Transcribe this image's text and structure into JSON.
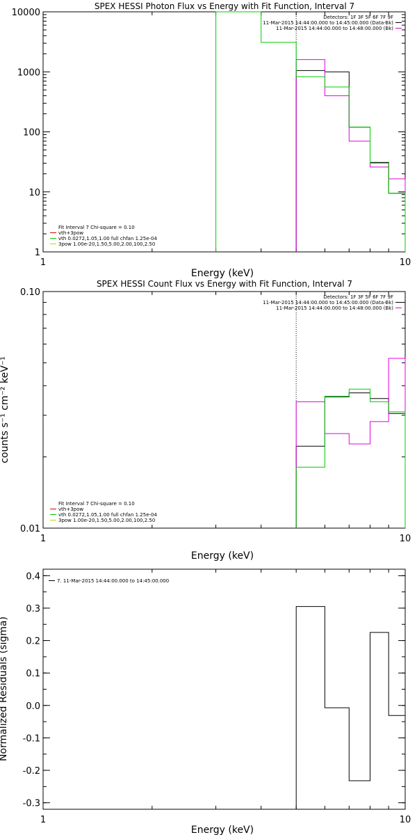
{
  "chart_data": [
    {
      "type": "line",
      "subtype": "step",
      "title": "SPEX HESSI Photon Flux vs Energy with Fit Function, Interval 7",
      "xlabel": "Energy (keV)",
      "ylabel": "",
      "xscale": "log",
      "yscale": "log",
      "xlim": [
        1,
        10
      ],
      "ylim": [
        1,
        10000
      ],
      "x_ticks": [
        "1",
        "10"
      ],
      "y_ticks": [
        "1",
        "10",
        "100",
        "1000",
        "10000"
      ],
      "marker_line_x": 5,
      "legend_top_right": {
        "lines": [
          "Detectors: 1F 3F 5F 6F 7F 9F",
          "11-Mar-2015 14:44:00.000 to 14:45:00.000 (Data-Bk)",
          "11-Mar-2015 14:44:00.000 to 14:48:00.000 (Bk)"
        ],
        "colors": [
          "#000000",
          "#000000",
          "#e000e0"
        ]
      },
      "legend_bottom_left": {
        "lines": [
          "Fit Interval 7   Chi-square = 0.10",
          "vth+3pow",
          "vth 0.0272,1.05,1.00  full chfan 1.25e-04",
          "3pow 1.00e-20,1.50,5.00,2.00,100,2.50"
        ],
        "colors": [
          "#000000",
          "#e00000",
          "#00cc00",
          "#cccc00"
        ]
      },
      "series": [
        {
          "color": "#000000",
          "edges": [
            5,
            6,
            7,
            8,
            9,
            10
          ],
          "values": [
            1050,
            1000,
            120,
            31,
            9.5
          ]
        },
        {
          "color": "#e000e0",
          "edges": [
            5,
            6,
            7,
            8,
            9,
            10
          ],
          "values": [
            1600,
            400,
            70,
            26,
            16.5
          ]
        },
        {
          "color": "#00cc00",
          "edges": [
            3,
            4,
            5,
            6,
            7,
            8,
            9,
            10
          ],
          "values": [
            10000,
            3100,
            830,
            560,
            120,
            30,
            9.5
          ]
        }
      ]
    },
    {
      "type": "line",
      "subtype": "step",
      "title": "SPEX HESSI Count Flux vs Energy with Fit Function, Interval 7",
      "xlabel": "Energy (keV)",
      "ylabel": "counts s⁻¹ cm⁻² keV⁻¹",
      "xscale": "log",
      "yscale": "log",
      "xlim": [
        1,
        10
      ],
      "ylim": [
        0.01,
        0.1
      ],
      "x_ticks": [
        "1",
        "10"
      ],
      "y_ticks": [
        "0.01",
        "0.10"
      ],
      "marker_line_x": 5,
      "legend_top_right": {
        "lines": [
          "Detectors: 1F 3F 5F 6F 7F 9F",
          "11-Mar-2015 14:44:00.000 to 14:45:00.000 (Data-Bk)",
          "11-Mar-2015 14:44:00.000 to 14:48:00.000 (Bk)"
        ],
        "colors": [
          "#000000",
          "#000000",
          "#e000e0"
        ]
      },
      "legend_bottom_left": {
        "lines": [
          "Fit Interval 7   Chi-square = 0.10",
          "vth+3pow",
          "vth 0.0272,1.05,1.00  full chfan 1.25e-04",
          "3pow 1.00e-20,1.50,5.00,2.00,100,2.50"
        ],
        "colors": [
          "#000000",
          "#e00000",
          "#00cc00",
          "#cccc00"
        ]
      },
      "series": [
        {
          "color": "#000000",
          "edges": [
            5,
            6,
            7,
            8,
            9,
            10
          ],
          "values": [
            0.0222,
            0.0359,
            0.0373,
            0.0353,
            0.0305
          ]
        },
        {
          "color": "#e000e0",
          "edges": [
            5,
            6,
            7,
            8,
            9,
            10
          ],
          "values": [
            0.0342,
            0.0251,
            0.0227,
            0.0282,
            0.0522
          ]
        },
        {
          "color": "#00cc00",
          "edges": [
            5,
            6,
            7,
            8,
            9,
            10
          ],
          "values": [
            0.0181,
            0.0361,
            0.0387,
            0.0342,
            0.031
          ]
        }
      ]
    },
    {
      "type": "line",
      "subtype": "step",
      "title": "",
      "xlabel": "Energy (keV)",
      "ylabel": "Normalized Residuals (sigma)",
      "xscale": "log",
      "yscale": "linear",
      "xlim": [
        1,
        10
      ],
      "ylim": [
        -0.32,
        0.42
      ],
      "x_ticks": [
        "1",
        "10"
      ],
      "y_ticks": [
        "-0.3",
        "-0.2",
        "-0.1",
        "0.0",
        "0.1",
        "0.2",
        "0.3",
        "0.4"
      ],
      "legend_top_left": {
        "lines": [
          "7. 11-Mar-2015 14:44:00.000 to 14:45:00.000"
        ],
        "colors": [
          "#000000"
        ]
      },
      "series": [
        {
          "color": "#000000",
          "edges": [
            5,
            6,
            7,
            8,
            9,
            10
          ],
          "values": [
            0.305,
            -0.007,
            -0.232,
            0.225,
            -0.031
          ]
        }
      ]
    }
  ]
}
